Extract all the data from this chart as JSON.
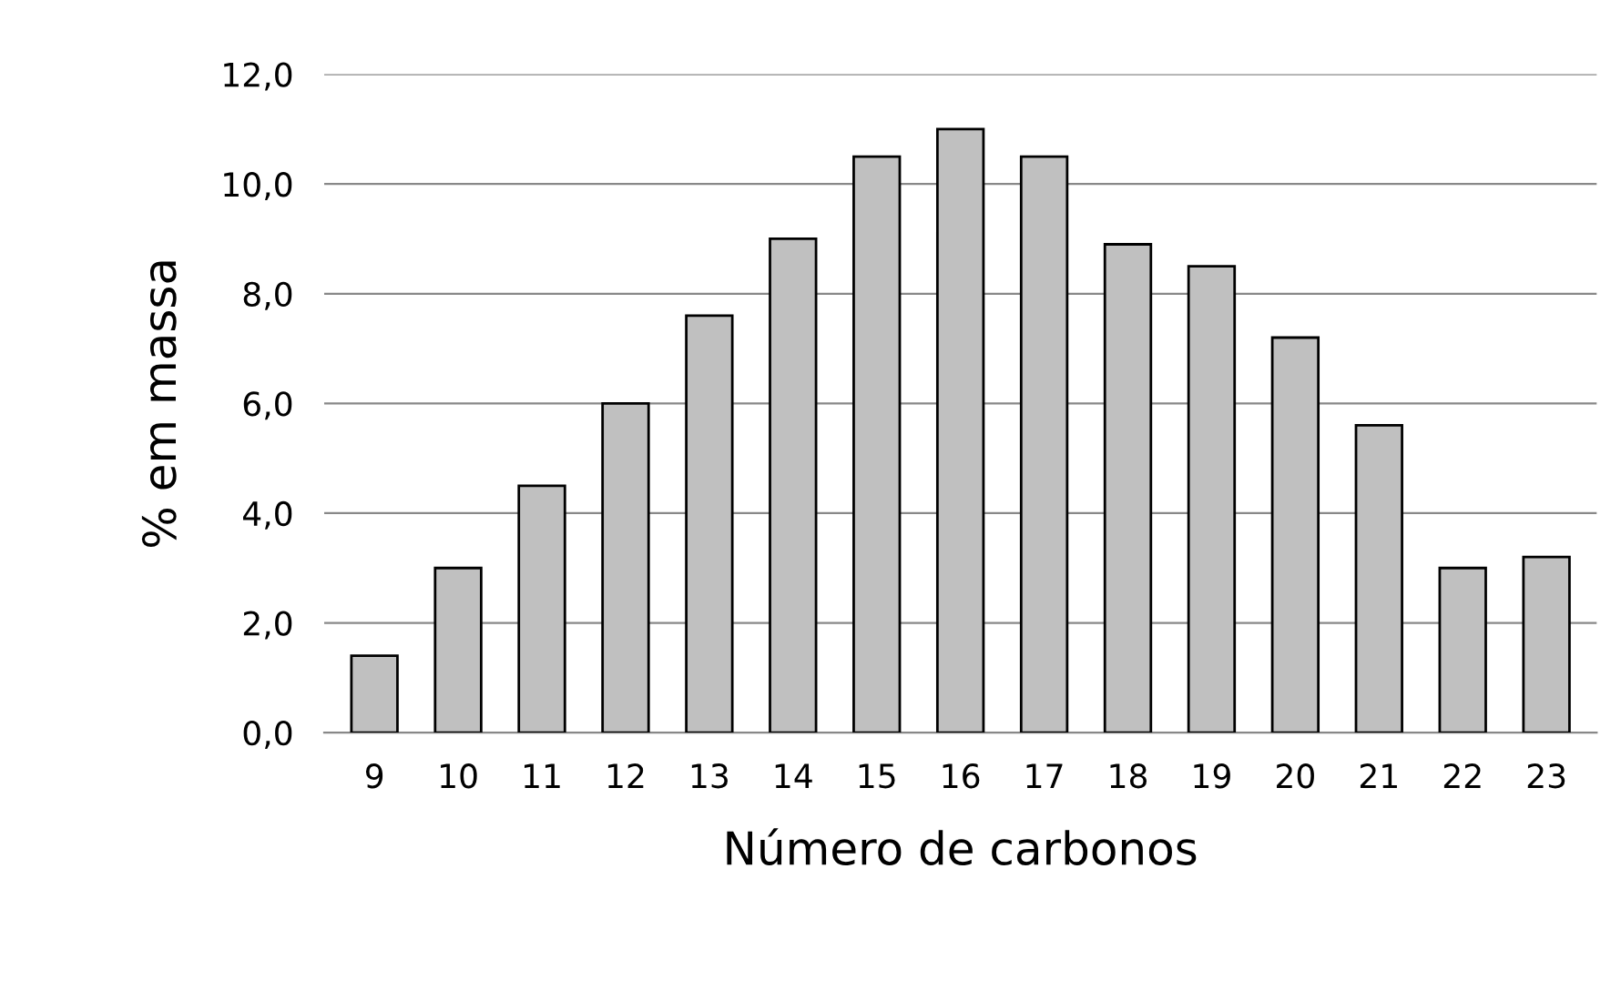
{
  "chart_data": {
    "type": "bar",
    "xlabel": "Número de carbonos",
    "ylabel": "% em massa",
    "categories": [
      "9",
      "10",
      "11",
      "12",
      "13",
      "14",
      "15",
      "16",
      "17",
      "18",
      "19",
      "20",
      "21",
      "22",
      "23"
    ],
    "values": [
      1.4,
      3.0,
      4.5,
      6.0,
      7.6,
      9.0,
      10.5,
      11.0,
      10.5,
      8.9,
      8.5,
      7.2,
      5.6,
      3.0,
      3.2
    ],
    "color": "#c0c0c0",
    "ylim": [
      0,
      12
    ],
    "yticks": [
      {
        "value": 0,
        "label": "0,0"
      },
      {
        "value": 2,
        "label": "2,0"
      },
      {
        "value": 4,
        "label": "4,0"
      },
      {
        "value": 6,
        "label": "6,0"
      },
      {
        "value": 8,
        "label": "8,0"
      },
      {
        "value": 10,
        "label": "10,0"
      },
      {
        "value": 12,
        "label": "12,0"
      }
    ],
    "grid": "y"
  }
}
